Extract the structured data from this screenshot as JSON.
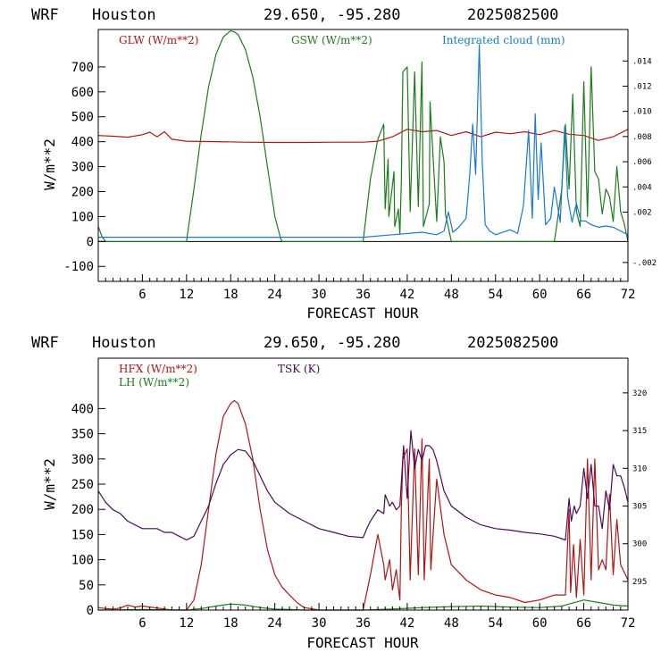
{
  "panels": [
    {
      "header": {
        "model": "WRF",
        "location": "Houston",
        "coords": "29.650, -95.280",
        "init": "2025082500"
      },
      "xlabel": "FORECAST HOUR",
      "ylabel": "W/m**2",
      "legend": [
        {
          "label": "GLW (W/m**2)",
          "color": "#b01515"
        },
        {
          "label": "GSW (W/m**2)",
          "color": "#1c7c1c"
        },
        {
          "label": "Integrated cloud (mm)",
          "color": "#1a78d2"
        }
      ]
    },
    {
      "header": {
        "model": "WRF",
        "location": "Houston",
        "coords": "29.650, -95.280",
        "init": "2025082500"
      },
      "xlabel": "FORECAST HOUR",
      "ylabel": "W/m**2",
      "legend": [
        {
          "label": "HFX (W/m**2)",
          "color": "#b01515"
        },
        {
          "label": "LH  (W/m**2)",
          "color": "#1c7c1c"
        },
        {
          "label": "TSK (K)",
          "color": "#4a0a5a"
        }
      ]
    }
  ],
  "chart_data": [
    {
      "type": "line",
      "title": "WRF Houston 29.650, -95.280 2025082500",
      "xlabel": "FORECAST HOUR",
      "ylabel": "W/m**2",
      "xlim": [
        0,
        72
      ],
      "ylim": [
        -160,
        850
      ],
      "y2lim": [
        -0.0035,
        0.0165
      ],
      "x_ticks": [
        6,
        12,
        18,
        24,
        30,
        36,
        42,
        48,
        54,
        60,
        66,
        72
      ],
      "y_ticks": [
        -100,
        0,
        100,
        200,
        300,
        400,
        500,
        600,
        700
      ],
      "y2_ticks": [
        -0.002,
        0.002,
        0.004,
        0.006,
        0.008,
        0.01,
        0.012,
        0.014
      ],
      "y2_tick_labels": [
        "-.002",
        ".002",
        ".004",
        ".006",
        ".008",
        ".010",
        ".012",
        ".014"
      ],
      "legend_placement": "top",
      "series": [
        {
          "name": "GLW (W/m**2)",
          "color": "#b01515",
          "axis": "left",
          "x": [
            0,
            2,
            4,
            6,
            7,
            8,
            9,
            10,
            12,
            16,
            20,
            24,
            28,
            32,
            36,
            38,
            40,
            42,
            44,
            46,
            48,
            50,
            52,
            54,
            56,
            58,
            60,
            62,
            64,
            66,
            68,
            70,
            72
          ],
          "y": [
            425,
            422,
            418,
            428,
            438,
            420,
            440,
            410,
            402,
            400,
            398,
            397,
            397,
            398,
            398,
            402,
            420,
            450,
            440,
            445,
            425,
            440,
            420,
            438,
            432,
            440,
            428,
            445,
            430,
            425,
            405,
            420,
            450
          ]
        },
        {
          "name": "GSW (W/m**2)",
          "color": "#1c7c1c",
          "axis": "left",
          "x": [
            0,
            0.5,
            1,
            11.9,
            12,
            13,
            14,
            15,
            16,
            17,
            18,
            18.5,
            19,
            20,
            21,
            22,
            23,
            24,
            24.8,
            25,
            35.9,
            36,
            37,
            38,
            38.8,
            39,
            39.4,
            39.5,
            40.2,
            40.3,
            40.8,
            41,
            41.2,
            41.4,
            42,
            42.4,
            43,
            43.5,
            44,
            44.2,
            45,
            45.1,
            46,
            46.5,
            47,
            47.2,
            48,
            62,
            62.3,
            63,
            63.5,
            64,
            64.5,
            65,
            65.5,
            66,
            66.5,
            67,
            67.5,
            68,
            68.5,
            69,
            69.5,
            70,
            70.5,
            71,
            71.5,
            72
          ],
          "y": [
            60,
            20,
            0,
            0,
            0,
            210,
            430,
            620,
            750,
            820,
            845,
            840,
            830,
            770,
            660,
            500,
            300,
            100,
            10,
            0,
            0,
            0,
            250,
            410,
            470,
            130,
            330,
            100,
            280,
            60,
            130,
            30,
            240,
            680,
            700,
            120,
            680,
            140,
            720,
            60,
            150,
            560,
            80,
            420,
            320,
            110,
            0,
            0,
            60,
            210,
            470,
            210,
            590,
            120,
            60,
            640,
            100,
            700,
            280,
            250,
            110,
            210,
            180,
            80,
            300,
            120,
            70,
            0
          ]
        },
        {
          "name": "Integrated cloud (mm)",
          "color": "#1a78d2",
          "axis": "right",
          "x": [
            0,
            36,
            40,
            44,
            46,
            47,
            47.6,
            48.2,
            49,
            50,
            50.5,
            50.9,
            51.3,
            51.8,
            52.2,
            52.6,
            53.2,
            54,
            56,
            57,
            57.8,
            58.5,
            59,
            59.4,
            59.8,
            60.2,
            60.8,
            61.5,
            62,
            62.8,
            63.4,
            63.8,
            64.4,
            65,
            65.6,
            66.2,
            67,
            68,
            69,
            70,
            71,
            72
          ],
          "y": [
            0,
            0,
            0.0002,
            0.0004,
            0.0002,
            0.0005,
            0.002,
            0.0004,
            0.0008,
            0.0015,
            0.005,
            0.009,
            0.005,
            0.0153,
            0.006,
            0.001,
            0.0005,
            0.0002,
            0.0006,
            0.0003,
            0.0025,
            0.0085,
            0.0015,
            0.0098,
            0.003,
            0.0075,
            0.001,
            0.0015,
            0.004,
            0.0012,
            0.0088,
            0.0032,
            0.0012,
            0.0027,
            0.0013,
            0.0013,
            0.001,
            0.0008,
            0.0009,
            0.0008,
            0.0005,
            0.0002
          ]
        }
      ]
    },
    {
      "type": "line",
      "title": "WRF Houston 29.650, -95.280 2025082500",
      "xlabel": "FORECAST HOUR",
      "ylabel": "W/m**2",
      "xlim": [
        0,
        72
      ],
      "ylim": [
        0,
        500
      ],
      "y2lim": [
        291.2,
        324.6
      ],
      "x_ticks": [
        6,
        12,
        18,
        24,
        30,
        36,
        42,
        48,
        54,
        60,
        66,
        72
      ],
      "y_ticks": [
        0,
        50,
        100,
        150,
        200,
        250,
        300,
        350,
        400
      ],
      "y2_ticks": [
        295,
        300,
        305,
        310,
        315,
        320
      ],
      "y2_tick_labels": [
        "295",
        "300",
        "305",
        "310",
        "315",
        "320"
      ],
      "legend_placement": "top-left",
      "series": [
        {
          "name": "HFX (W/m**2)",
          "color": "#b01515",
          "axis": "left",
          "x": [
            0,
            1,
            2,
            3,
            4,
            5,
            6,
            8,
            10,
            12,
            13,
            14,
            15,
            16,
            17,
            18,
            18.5,
            19,
            20,
            21,
            22,
            23,
            24,
            25,
            26,
            27,
            28,
            30,
            34,
            36,
            37,
            38,
            38.8,
            39,
            39.6,
            40,
            40.5,
            41,
            41.2,
            41.4,
            42,
            42.4,
            43,
            43.5,
            44,
            44.3,
            45,
            45.2,
            46,
            47,
            48,
            50,
            52,
            54,
            56,
            58,
            60,
            62,
            63.5,
            64,
            64.2,
            64.6,
            65,
            65.5,
            66,
            66.5,
            67,
            67.5,
            68,
            68.5,
            69,
            69.5,
            70,
            70.5,
            71,
            72
          ],
          "y": [
            5,
            3,
            2,
            4,
            10,
            6,
            8,
            4,
            0,
            0,
            20,
            90,
            200,
            310,
            385,
            410,
            416,
            410,
            370,
            300,
            200,
            120,
            70,
            45,
            30,
            15,
            5,
            0,
            0,
            0,
            70,
            150,
            90,
            60,
            100,
            40,
            80,
            20,
            200,
            300,
            320,
            60,
            320,
            70,
            340,
            60,
            300,
            80,
            260,
            150,
            90,
            60,
            40,
            30,
            25,
            15,
            20,
            30,
            30,
            200,
            35,
            130,
            25,
            140,
            30,
            300,
            60,
            300,
            80,
            100,
            80,
            230,
            70,
            180,
            90,
            60
          ]
        },
        {
          "name": "LH  (W/m**2)",
          "color": "#1c7c1c",
          "axis": "left",
          "x": [
            0,
            6,
            12,
            14,
            16,
            18,
            20,
            22,
            24,
            26,
            28,
            36,
            40,
            44,
            48,
            52,
            56,
            60,
            63,
            64,
            66,
            68,
            70,
            72
          ],
          "y": [
            0,
            1,
            0,
            3,
            8,
            12,
            10,
            5,
            2,
            1,
            0,
            0,
            2,
            5,
            7,
            8,
            6,
            5,
            8,
            12,
            20,
            15,
            10,
            8
          ]
        },
        {
          "name": "TSK (K)",
          "color": "#4a0a5a",
          "axis": "right",
          "x": [
            0,
            1,
            2,
            3,
            4,
            5,
            6,
            7,
            8,
            9,
            10,
            11,
            12,
            13,
            14,
            15,
            16,
            17,
            18,
            19,
            20,
            21,
            22,
            23,
            24,
            26,
            28,
            30,
            32,
            34,
            36,
            36.5,
            37,
            38,
            38.8,
            39,
            39.6,
            40,
            40.5,
            41,
            41.5,
            42,
            42.5,
            43,
            43.5,
            44,
            44.5,
            45,
            45.5,
            46,
            47,
            48,
            50,
            52,
            54,
            56,
            58,
            60,
            62,
            63.5,
            64,
            64.3,
            64.7,
            65,
            65.5,
            66,
            66.5,
            67,
            67.5,
            68,
            68.5,
            69,
            69.5,
            70,
            70.5,
            71,
            71.5,
            72
          ],
          "y": [
            307,
            305.5,
            304.5,
            304,
            303,
            302.5,
            302,
            302,
            302,
            301.5,
            301.5,
            301,
            300.5,
            301,
            303,
            305,
            308,
            310.5,
            311.8,
            312.5,
            312.3,
            311,
            309,
            307,
            305.5,
            304,
            303,
            302,
            301.5,
            301,
            300.8,
            302,
            303,
            304.5,
            304,
            306.5,
            305,
            305.5,
            304.5,
            305,
            313,
            306,
            315,
            310,
            312.5,
            311,
            313,
            313,
            312.5,
            311,
            307,
            305,
            303.5,
            302.5,
            302,
            301.8,
            301.5,
            301.3,
            301,
            300.5,
            306,
            303,
            305,
            304,
            305,
            310,
            306,
            310.5,
            305,
            305,
            302,
            307,
            304.5,
            310.5,
            309,
            309,
            307.5,
            305.5
          ]
        }
      ]
    }
  ]
}
